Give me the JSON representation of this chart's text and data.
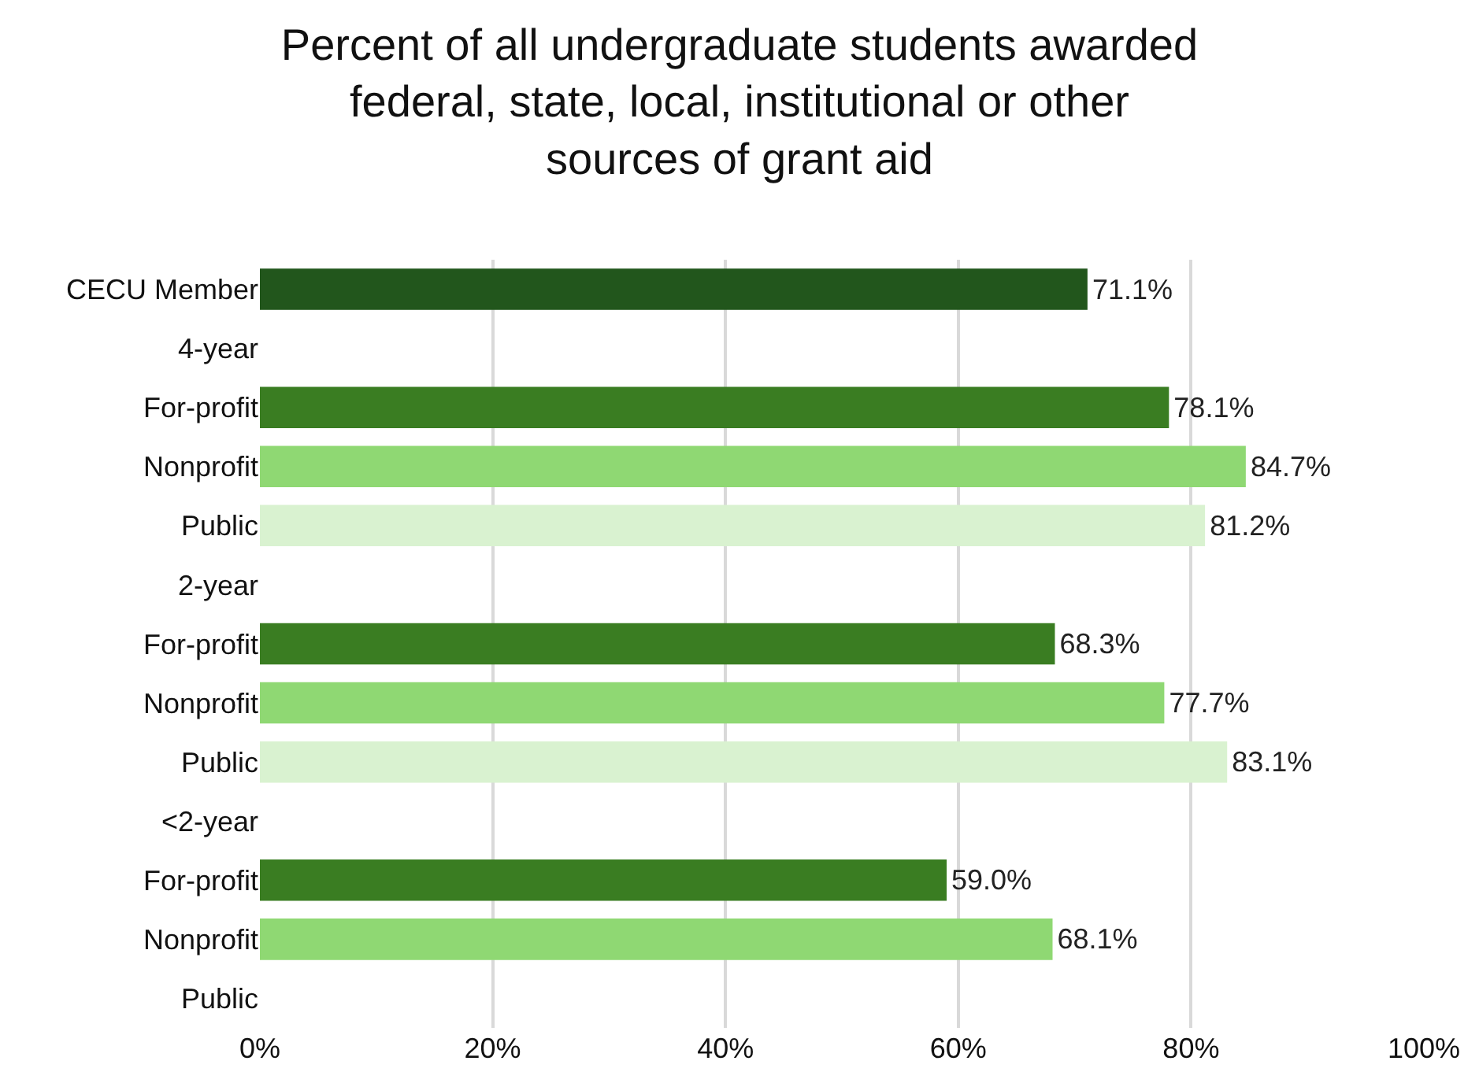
{
  "chart_data": {
    "type": "bar",
    "orientation": "horizontal",
    "title": "Percent of all undergraduate students awarded federal, state, local, institutional or other sources of grant aid",
    "categories": [
      "CECU Member",
      "4-year",
      "For-profit",
      "Nonprofit",
      "Public",
      "2-year",
      "For-profit",
      "Nonprofit",
      "Public",
      "<2-year",
      "For-profit",
      "Nonprofit",
      "Public"
    ],
    "values": [
      71.1,
      null,
      78.1,
      84.7,
      81.2,
      null,
      68.3,
      77.7,
      83.1,
      null,
      59.0,
      68.1,
      null
    ],
    "colors": [
      "#22561c",
      "#22561c",
      "#3a7d22",
      "#8fd873",
      "#d9f2d0",
      "#22561c",
      "#3a7d22",
      "#8fd873",
      "#d9f2d0",
      "#22561c",
      "#3a7d22",
      "#8fd873",
      "#d9f2d0"
    ],
    "value_labels": [
      "71.1%",
      null,
      "78.1%",
      "84.7%",
      "81.2%",
      null,
      "68.3%",
      "77.7%",
      "83.1%",
      null,
      "59.0%",
      "68.1%",
      null
    ],
    "xlim": [
      0,
      100
    ],
    "xticks": [
      {
        "value": 0,
        "label": "0%"
      },
      {
        "value": 20,
        "label": "20%"
      },
      {
        "value": 40,
        "label": "40%"
      },
      {
        "value": 60,
        "label": "60%"
      },
      {
        "value": 80,
        "label": "80%"
      },
      {
        "value": 100,
        "label": "100%"
      }
    ],
    "grid": "x"
  }
}
